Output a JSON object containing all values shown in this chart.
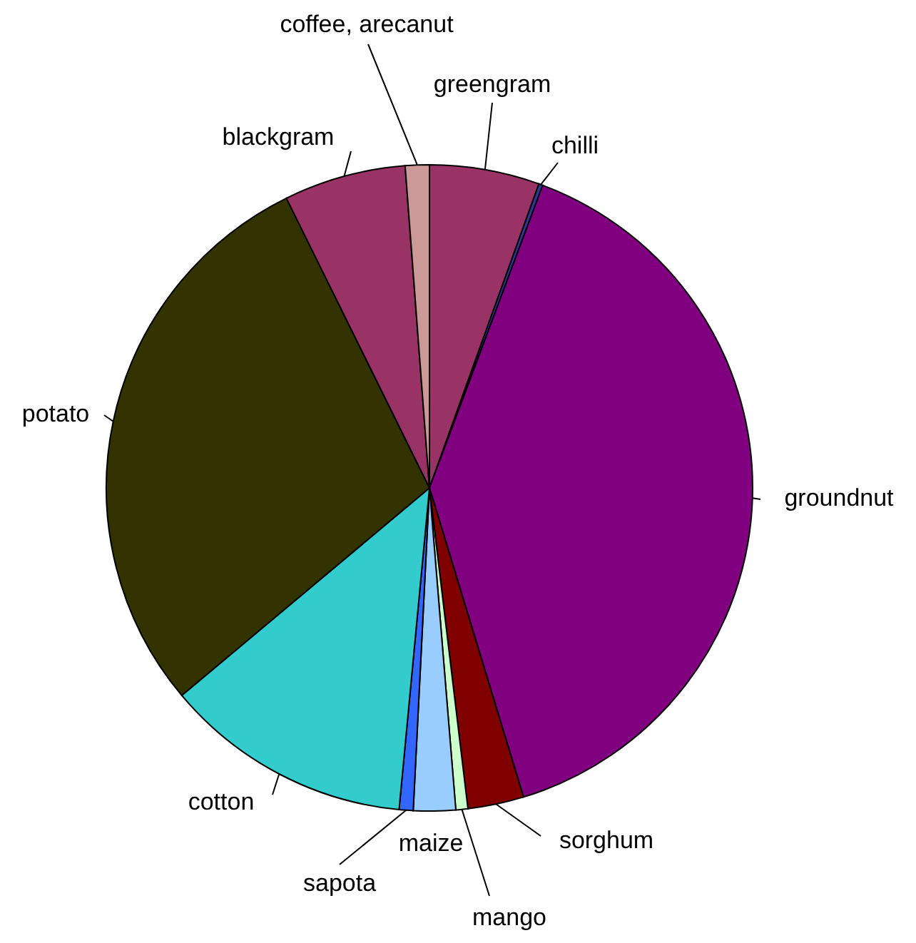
{
  "chart_data": {
    "type": "pie",
    "categories": [
      "greengram",
      "chilli",
      "groundnut",
      "sorghum",
      "mango",
      "maize",
      "sapota",
      "cotton",
      "potato",
      "blackgram",
      "coffee, arecanut"
    ],
    "values": [
      5.5,
      0.2,
      39.6,
      2.8,
      0.6,
      2.1,
      0.7,
      12.4,
      28.8,
      6.1,
      1.2
    ],
    "colors": [
      "#993366",
      "#333399",
      "#800080",
      "#800000",
      "#ccffcc",
      "#99ccff",
      "#3366ff",
      "#33cccc",
      "#333300",
      "#993366",
      "#cc9999"
    ],
    "legend": false
  }
}
